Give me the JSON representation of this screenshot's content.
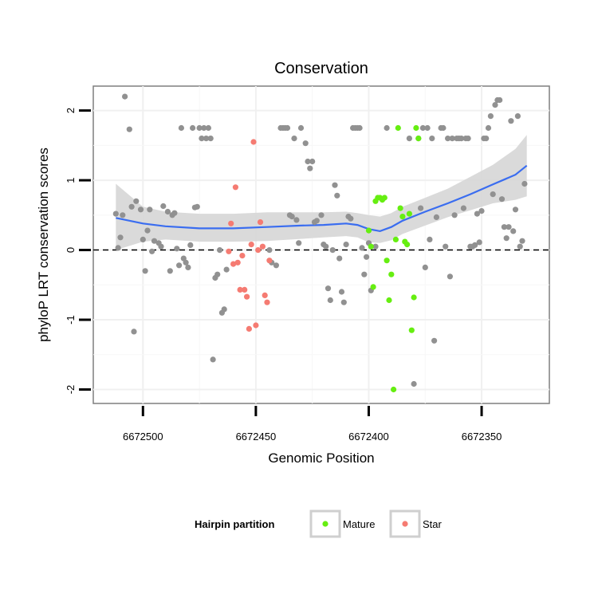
{
  "chart_data": {
    "type": "scatter",
    "title": "Conservation",
    "xlabel": "Genomic Position",
    "ylabel": "phyloP LRT conservation scores",
    "x_reversed": true,
    "xlim": [
      6672320,
      6672522
    ],
    "ylim": [
      -2.2,
      2.35
    ],
    "x_ticks": [
      6672500,
      6672450,
      6672400,
      6672350
    ],
    "x_tick_labels": [
      "6672500",
      "6672450",
      "6672400",
      "6672350"
    ],
    "y_ticks": [
      -2,
      -1,
      0,
      1,
      2
    ],
    "y_tick_labels": [
      "-2",
      "-1",
      "0",
      "1",
      "2"
    ],
    "reference_line": {
      "y": 0,
      "style": "dashed"
    },
    "grid": true,
    "legend": {
      "title": "Hairpin partition",
      "position": "bottom",
      "entries": [
        {
          "label": "Mature",
          "color": "#66ee11"
        },
        {
          "label": "Star",
          "color": "#f57b72"
        }
      ]
    },
    "colors": {
      "other": "#919191",
      "Mature": "#66ee11",
      "Star": "#f57b72",
      "smooth": "#3a6df0",
      "band": "#d6d6d6"
    },
    "series": [
      {
        "partition": "other",
        "points": [
          [
            6672512,
            0.52
          ],
          [
            6672509,
            0.5
          ],
          [
            6672510,
            0.18
          ],
          [
            6672511,
            0.03
          ],
          [
            6672508,
            2.2
          ],
          [
            6672506,
            1.73
          ],
          [
            6672504,
            -1.17
          ],
          [
            6672505,
            0.62
          ],
          [
            6672503,
            0.7
          ],
          [
            6672501,
            0.58
          ],
          [
            6672500,
            0.15
          ],
          [
            6672499,
            -0.3
          ],
          [
            6672498,
            0.28
          ],
          [
            6672497,
            0.58
          ],
          [
            6672496,
            -0.02
          ],
          [
            6672495,
            0.13
          ],
          [
            6672493,
            0.1
          ],
          [
            6672492,
            0.05
          ],
          [
            6672491,
            0.63
          ],
          [
            6672489,
            0.55
          ],
          [
            6672488,
            -0.3
          ],
          [
            6672487,
            0.5
          ],
          [
            6672486,
            0.53
          ],
          [
            6672485,
            0.02
          ],
          [
            6672484,
            -0.22
          ],
          [
            6672483,
            1.75
          ],
          [
            6672482,
            -0.12
          ],
          [
            6672481,
            -0.18
          ],
          [
            6672480,
            -0.25
          ],
          [
            6672479,
            0.07
          ],
          [
            6672478,
            1.75
          ],
          [
            6672477,
            0.61
          ],
          [
            6672476,
            0.62
          ],
          [
            6672475,
            1.75
          ],
          [
            6672474,
            1.6
          ],
          [
            6672473,
            1.75
          ],
          [
            6672472,
            1.6
          ],
          [
            6672471,
            1.75
          ],
          [
            6672470,
            1.6
          ],
          [
            6672469,
            -1.57
          ],
          [
            6672468,
            -0.4
          ],
          [
            6672467,
            -0.35
          ],
          [
            6672466,
            0.0
          ],
          [
            6672465,
            -0.9
          ],
          [
            6672464,
            -0.85
          ],
          [
            6672463,
            -0.28
          ],
          [
            6672444,
            0.0
          ],
          [
            6672443,
            -0.18
          ],
          [
            6672441,
            -0.22
          ],
          [
            6672439,
            1.75
          ],
          [
            6672438,
            1.75
          ],
          [
            6672437,
            1.75
          ],
          [
            6672436,
            1.75
          ],
          [
            6672435,
            0.5
          ],
          [
            6672434,
            0.48
          ],
          [
            6672433,
            1.6
          ],
          [
            6672432,
            0.43
          ],
          [
            6672431,
            0.1
          ],
          [
            6672430,
            1.75
          ],
          [
            6672428,
            1.53
          ],
          [
            6672427,
            1.27
          ],
          [
            6672426,
            1.17
          ],
          [
            6672425,
            1.27
          ],
          [
            6672424,
            0.4
          ],
          [
            6672423,
            0.42
          ],
          [
            6672421,
            0.5
          ],
          [
            6672420,
            0.08
          ],
          [
            6672419,
            0.05
          ],
          [
            6672418,
            -0.55
          ],
          [
            6672417,
            -0.72
          ],
          [
            6672416,
            0.0
          ],
          [
            6672415,
            0.93
          ],
          [
            6672414,
            0.78
          ],
          [
            6672413,
            -0.12
          ],
          [
            6672412,
            -0.6
          ],
          [
            6672411,
            -0.75
          ],
          [
            6672410,
            0.08
          ],
          [
            6672409,
            0.48
          ],
          [
            6672408,
            0.45
          ],
          [
            6672407,
            1.75
          ],
          [
            6672406,
            1.75
          ],
          [
            6672405,
            1.75
          ],
          [
            6672404,
            1.75
          ],
          [
            6672403,
            0.03
          ],
          [
            6672402,
            -0.35
          ],
          [
            6672401,
            -0.1
          ],
          [
            6672400,
            0.1
          ],
          [
            6672399,
            -0.58
          ],
          [
            6672397,
            0.05
          ],
          [
            6672392,
            1.75
          ],
          [
            6672382,
            1.6
          ],
          [
            6672380,
            -1.92
          ],
          [
            6672378,
            1.6
          ],
          [
            6672377,
            0.6
          ],
          [
            6672376,
            1.75
          ],
          [
            6672375,
            -0.25
          ],
          [
            6672374,
            1.75
          ],
          [
            6672373,
            0.15
          ],
          [
            6672372,
            1.6
          ],
          [
            6672371,
            -1.3
          ],
          [
            6672370,
            0.47
          ],
          [
            6672368,
            1.75
          ],
          [
            6672367,
            1.75
          ],
          [
            6672366,
            0.05
          ],
          [
            6672365,
            1.6
          ],
          [
            6672364,
            -0.38
          ],
          [
            6672363,
            1.6
          ],
          [
            6672362,
            0.5
          ],
          [
            6672361,
            1.6
          ],
          [
            6672360,
            1.6
          ],
          [
            6672359,
            1.6
          ],
          [
            6672358,
            0.6
          ],
          [
            6672357,
            1.6
          ],
          [
            6672356,
            1.6
          ],
          [
            6672355,
            0.05
          ],
          [
            6672354,
            0.05
          ],
          [
            6672353,
            0.07
          ],
          [
            6672352,
            0.52
          ],
          [
            6672351,
            0.11
          ],
          [
            6672350,
            0.56
          ],
          [
            6672349,
            1.6
          ],
          [
            6672348,
            1.6
          ],
          [
            6672347,
            1.75
          ],
          [
            6672346,
            1.92
          ],
          [
            6672345,
            0.8
          ],
          [
            6672344,
            2.08
          ],
          [
            6672343,
            2.15
          ],
          [
            6672342,
            2.15
          ],
          [
            6672341,
            0.73
          ],
          [
            6672340,
            0.33
          ],
          [
            6672339,
            0.17
          ],
          [
            6672338,
            0.33
          ],
          [
            6672337,
            1.85
          ],
          [
            6672336,
            0.27
          ],
          [
            6672335,
            0.58
          ],
          [
            6672334,
            1.92
          ],
          [
            6672333,
            0.05
          ],
          [
            6672332,
            0.13
          ],
          [
            6672331,
            0.95
          ]
        ]
      },
      {
        "partition": "Mature",
        "points": [
          [
            6672400,
            0.28
          ],
          [
            6672399,
            0.05
          ],
          [
            6672398,
            -0.53
          ],
          [
            6672397,
            0.7
          ],
          [
            6672396,
            0.75
          ],
          [
            6672395,
            0.75
          ],
          [
            6672394,
            0.72
          ],
          [
            6672393,
            0.75
          ],
          [
            6672392,
            -0.15
          ],
          [
            6672391,
            -0.72
          ],
          [
            6672390,
            -0.35
          ],
          [
            6672389,
            -2.0
          ],
          [
            6672388,
            0.15
          ],
          [
            6672387,
            1.75
          ],
          [
            6672386,
            0.6
          ],
          [
            6672385,
            0.48
          ],
          [
            6672384,
            0.12
          ],
          [
            6672383,
            0.08
          ],
          [
            6672382,
            0.52
          ],
          [
            6672381,
            -1.15
          ],
          [
            6672380,
            -0.68
          ],
          [
            6672379,
            1.75
          ],
          [
            6672378,
            1.6
          ]
        ]
      },
      {
        "partition": "Star",
        "points": [
          [
            6672462,
            -0.02
          ],
          [
            6672461,
            0.38
          ],
          [
            6672460,
            -0.2
          ],
          [
            6672459,
            0.9
          ],
          [
            6672458,
            -0.18
          ],
          [
            6672457,
            -0.57
          ],
          [
            6672456,
            -0.08
          ],
          [
            6672455,
            -0.57
          ],
          [
            6672454,
            -0.67
          ],
          [
            6672453,
            -1.13
          ],
          [
            6672452,
            0.08
          ],
          [
            6672451,
            1.55
          ],
          [
            6672450,
            -1.08
          ],
          [
            6672449,
            0.0
          ],
          [
            6672448,
            0.4
          ],
          [
            6672447,
            0.05
          ],
          [
            6672446,
            -0.65
          ],
          [
            6672445,
            -0.75
          ],
          [
            6672444,
            -0.15
          ]
        ]
      }
    ],
    "smooth": [
      [
        6672512,
        0.46
      ],
      [
        6672500,
        0.38
      ],
      [
        6672490,
        0.34
      ],
      [
        6672475,
        0.31
      ],
      [
        6672460,
        0.31
      ],
      [
        6672445,
        0.33
      ],
      [
        6672430,
        0.35
      ],
      [
        6672420,
        0.36
      ],
      [
        6672410,
        0.38
      ],
      [
        6672405,
        0.36
      ],
      [
        6672400,
        0.3
      ],
      [
        6672395,
        0.27
      ],
      [
        6672390,
        0.33
      ],
      [
        6672385,
        0.42
      ],
      [
        6672375,
        0.55
      ],
      [
        6672365,
        0.67
      ],
      [
        6672355,
        0.8
      ],
      [
        6672345,
        0.94
      ],
      [
        6672335,
        1.08
      ],
      [
        6672330,
        1.21
      ]
    ],
    "smooth_band": [
      [
        6672512,
        0.95,
        0.0
      ],
      [
        6672500,
        0.62,
        0.12
      ],
      [
        6672490,
        0.55,
        0.15
      ],
      [
        6672475,
        0.52,
        0.12
      ],
      [
        6672460,
        0.52,
        0.12
      ],
      [
        6672445,
        0.54,
        0.13
      ],
      [
        6672430,
        0.54,
        0.16
      ],
      [
        6672420,
        0.54,
        0.18
      ],
      [
        6672410,
        0.55,
        0.2
      ],
      [
        6672405,
        0.53,
        0.18
      ],
      [
        6672400,
        0.5,
        0.11
      ],
      [
        6672395,
        0.48,
        0.1
      ],
      [
        6672390,
        0.53,
        0.14
      ],
      [
        6672385,
        0.62,
        0.23
      ],
      [
        6672375,
        0.75,
        0.35
      ],
      [
        6672365,
        0.88,
        0.47
      ],
      [
        6672355,
        1.05,
        0.57
      ],
      [
        6672345,
        1.22,
        0.67
      ],
      [
        6672335,
        1.45,
        0.72
      ],
      [
        6672330,
        1.65,
        0.77
      ]
    ]
  }
}
